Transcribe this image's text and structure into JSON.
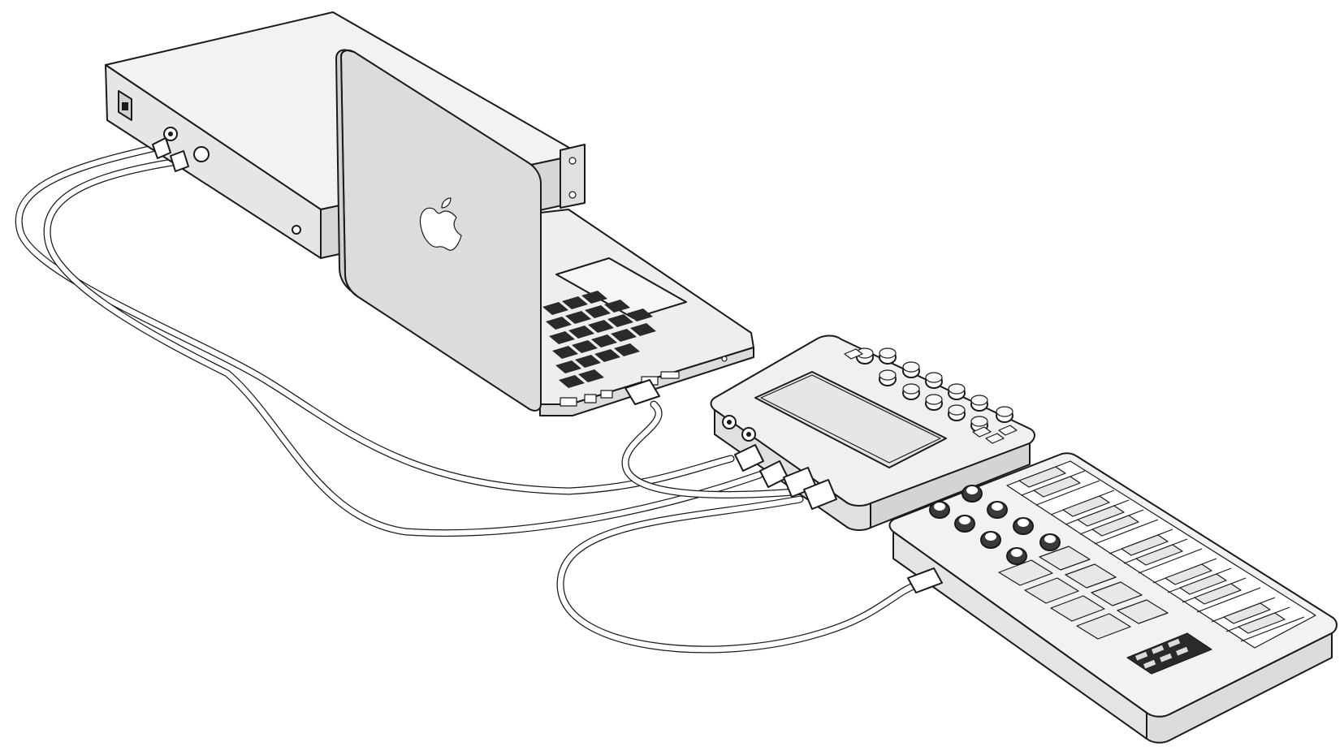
{
  "scene": {
    "devices": [
      {
        "id": "rack_unit",
        "kind": "rack-mount audio interface"
      },
      {
        "id": "laptop",
        "kind": "laptop",
        "logo": "apple-logo"
      },
      {
        "id": "controller",
        "kind": "tabletop controller with touch pad and knobs"
      },
      {
        "id": "keyboard",
        "kind": "MIDI keyboard controller with pads and knobs"
      }
    ],
    "connections": [
      {
        "from": "rack_unit",
        "to": "controller",
        "count": 2
      },
      {
        "from": "laptop",
        "to": "controller",
        "count": 1
      },
      {
        "from": "controller",
        "to": "keyboard",
        "count": 1
      }
    ]
  },
  "colors": {
    "outline": "#1a1a1a",
    "face_light": "#f2f2f2",
    "face_mid": "#e0e0e0",
    "face_dark": "#cfcfcf",
    "key_black": "#2a2a2a",
    "background": "#ffffff"
  }
}
